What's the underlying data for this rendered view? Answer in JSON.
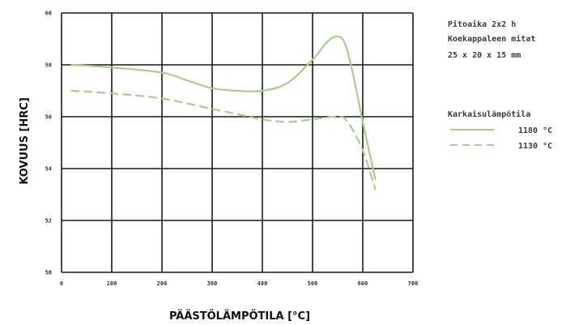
{
  "chart_data": {
    "type": "line",
    "xlabel": "PÄÄSTÖLÄMPÖTILA [°C]",
    "ylabel": "KOVUUS [HRC]",
    "xlim": [
      0,
      700
    ],
    "ylim": [
      50,
      60
    ],
    "x_ticks": [
      0,
      100,
      200,
      300,
      400,
      500,
      600,
      700
    ],
    "x_tick_labels": [
      "0",
      "100",
      "200",
      "300",
      "400",
      "500",
      "600",
      "700"
    ],
    "y_ticks": [
      50,
      52,
      54,
      56,
      58,
      60
    ],
    "y_tick_labels": [
      "50",
      "52",
      "54",
      "56",
      "58",
      "60"
    ],
    "grid": true,
    "legend_position": "right",
    "notes": [
      "Pitoaika 2x2 h",
      "Koekappaleen mitat",
      "25 x 20 x 15 mm"
    ],
    "legend_title": "Karkaisulämpötila",
    "series": [
      {
        "name": "1180 °C",
        "style": "solid",
        "color": "#a8cc8c",
        "points": [
          [
            20,
            58.0
          ],
          [
            100,
            57.9
          ],
          [
            200,
            57.7
          ],
          [
            250,
            57.4
          ],
          [
            300,
            57.1
          ],
          [
            350,
            57.0
          ],
          [
            400,
            57.0
          ],
          [
            450,
            57.3
          ],
          [
            500,
            58.2
          ],
          [
            530,
            58.9
          ],
          [
            550,
            59.1
          ],
          [
            565,
            58.8
          ],
          [
            580,
            57.7
          ],
          [
            600,
            55.8
          ],
          [
            625,
            53.6
          ]
        ]
      },
      {
        "name": "1130 °C",
        "style": "dashed",
        "color": "#a8cc8c",
        "points": [
          [
            20,
            57.0
          ],
          [
            100,
            56.9
          ],
          [
            200,
            56.7
          ],
          [
            300,
            56.3
          ],
          [
            350,
            56.1
          ],
          [
            400,
            55.9
          ],
          [
            450,
            55.8
          ],
          [
            500,
            55.9
          ],
          [
            550,
            56.0
          ],
          [
            570,
            55.8
          ],
          [
            600,
            54.7
          ],
          [
            625,
            53.2
          ]
        ]
      }
    ]
  }
}
